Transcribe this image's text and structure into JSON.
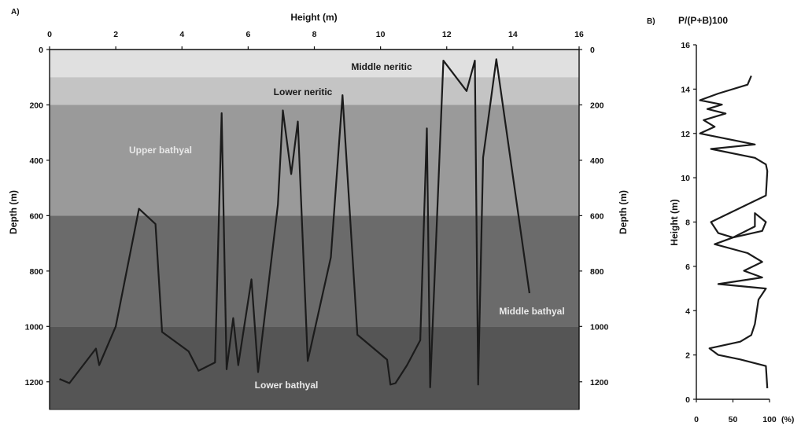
{
  "chart_data": [
    {
      "panel_label": "A)",
      "type": "line",
      "xlabel": "Height (m)",
      "ylabel": "Depth (m)",
      "ylabel_right": "Depth (m)",
      "xlim": [
        0,
        16
      ],
      "ylim": [
        0,
        1300
      ],
      "y_inverted": true,
      "x_ticks": [
        0,
        2,
        4,
        6,
        8,
        10,
        12,
        14,
        16
      ],
      "y_ticks": [
        0,
        200,
        400,
        600,
        800,
        1000,
        1200
      ],
      "bands": [
        {
          "name": "Middle neritic",
          "from": 0,
          "to": 100,
          "color": "#e0e0e0",
          "label_color": "#1a1a1a"
        },
        {
          "name": "Lower neritic",
          "from": 100,
          "to": 200,
          "color": "#c4c4c4",
          "label_color": "#1a1a1a"
        },
        {
          "name": "Upper bathyal",
          "from": 200,
          "to": 600,
          "color": "#9a9a9a",
          "label_color": "#e8e8e8"
        },
        {
          "name": "Middle bathyal",
          "from": 600,
          "to": 1000,
          "color": "#6b6b6b",
          "label_color": "#eaeaea"
        },
        {
          "name": "Lower bathyal",
          "from": 1000,
          "to": 1300,
          "color": "#555555",
          "label_color": "#eaeaea"
        }
      ],
      "series": [
        {
          "x": [
            0.3,
            0.6,
            1.4,
            1.5,
            2.0,
            2.7,
            3.2,
            3.4,
            4.2,
            4.5,
            5.0,
            5.2,
            5.35,
            5.55,
            5.7,
            6.1,
            6.3,
            6.9,
            7.05,
            7.3,
            7.5,
            7.8,
            8.5,
            8.85,
            9.3,
            10.2,
            10.3,
            10.45,
            10.8,
            11.2,
            11.4,
            11.5,
            11.9,
            12.6,
            12.85,
            12.95,
            13.1,
            13.5,
            14.5
          ],
          "y": [
            1190,
            1205,
            1080,
            1140,
            1000,
            575,
            630,
            1020,
            1090,
            1160,
            1130,
            230,
            1155,
            970,
            1140,
            830,
            1165,
            560,
            220,
            450,
            260,
            1125,
            750,
            165,
            1030,
            1120,
            1210,
            1205,
            1140,
            1050,
            285,
            1220,
            40,
            150,
            40,
            1210,
            390,
            35,
            880
          ]
        }
      ]
    },
    {
      "panel_label": "B)",
      "type": "line",
      "title": "P/(P+B)100",
      "ylabel": "Height (m)",
      "xlim": [
        0,
        100
      ],
      "ylim": [
        0,
        16
      ],
      "x_ticks": [
        0,
        50,
        100
      ],
      "x_tick_unit_label": "(%)",
      "y_ticks": [
        0,
        2,
        4,
        6,
        8,
        10,
        12,
        14,
        16
      ],
      "series": [
        {
          "x": [
            97,
            95,
            60,
            30,
            18,
            60,
            75,
            80,
            85,
            95,
            30,
            90,
            65,
            90,
            70,
            25,
            50,
            90,
            95,
            80,
            80,
            50,
            30,
            20,
            95,
            97,
            95,
            80,
            20,
            80,
            5,
            25,
            10,
            40,
            15,
            35,
            5,
            30,
            70,
            75
          ],
          "y": [
            0.5,
            1.5,
            1.8,
            2.0,
            2.3,
            2.6,
            2.9,
            3.4,
            4.5,
            5.0,
            5.2,
            5.5,
            5.8,
            6.2,
            6.6,
            7.0,
            7.3,
            7.6,
            8.0,
            8.4,
            7.8,
            7.3,
            7.5,
            8.0,
            9.2,
            10.3,
            10.6,
            10.9,
            11.3,
            11.5,
            12.0,
            12.3,
            12.6,
            12.9,
            13.1,
            13.3,
            13.5,
            13.8,
            14.2,
            14.6
          ]
        }
      ]
    }
  ]
}
